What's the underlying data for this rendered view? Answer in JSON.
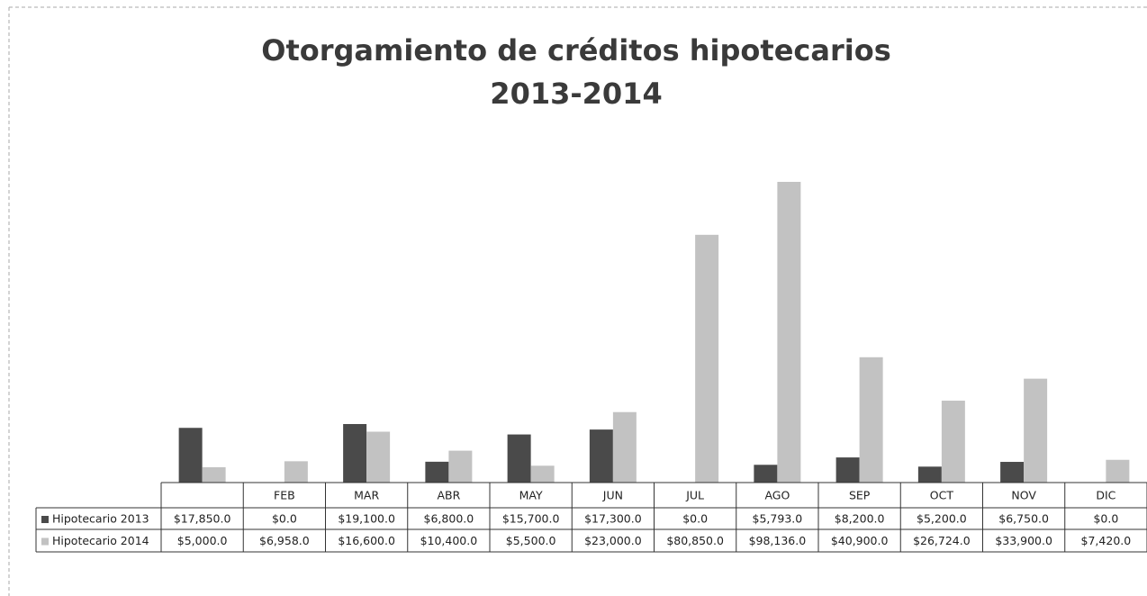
{
  "chart_data": {
    "type": "bar",
    "title": "Otorgamiento de créditos hipotecarios",
    "subtitle": "2013-2014",
    "categories": [
      null,
      "FEB",
      "MAR",
      "ABR",
      "MAY",
      "JUN",
      "JUL",
      "AGO",
      "SEP",
      "OCT",
      "NOV",
      "DIC"
    ],
    "series": [
      {
        "name": "Hipotecario 2013",
        "color": "#4a4a4a",
        "values": [
          17850,
          0,
          19100,
          6800,
          15700,
          17300,
          0,
          5793,
          8200,
          5200,
          6750,
          0
        ],
        "value_labels": [
          "$17,850.0",
          "$0.0",
          "$19,100.0",
          "$6,800.0",
          "$15,700.0",
          "$17,300.0",
          "$0.0",
          "$5,793.0",
          "$8,200.0",
          "$5,200.0",
          "$6,750.0",
          "$0.0"
        ]
      },
      {
        "name": "Hipotecario 2014",
        "color": "#c2c2c2",
        "values": [
          5000,
          6958,
          16600,
          10400,
          5500,
          23000,
          80850,
          98136,
          40900,
          26724,
          33900,
          7420
        ],
        "value_labels": [
          "$5,000.0",
          "$6,958.0",
          "$16,600.0",
          "$10,400.0",
          "$5,500.0",
          "$23,000.0",
          "$80,850.0",
          "$98,136.0",
          "$40,900.0",
          "$26,724.0",
          "$33,900.0",
          "$7,420.0"
        ]
      }
    ]
  }
}
